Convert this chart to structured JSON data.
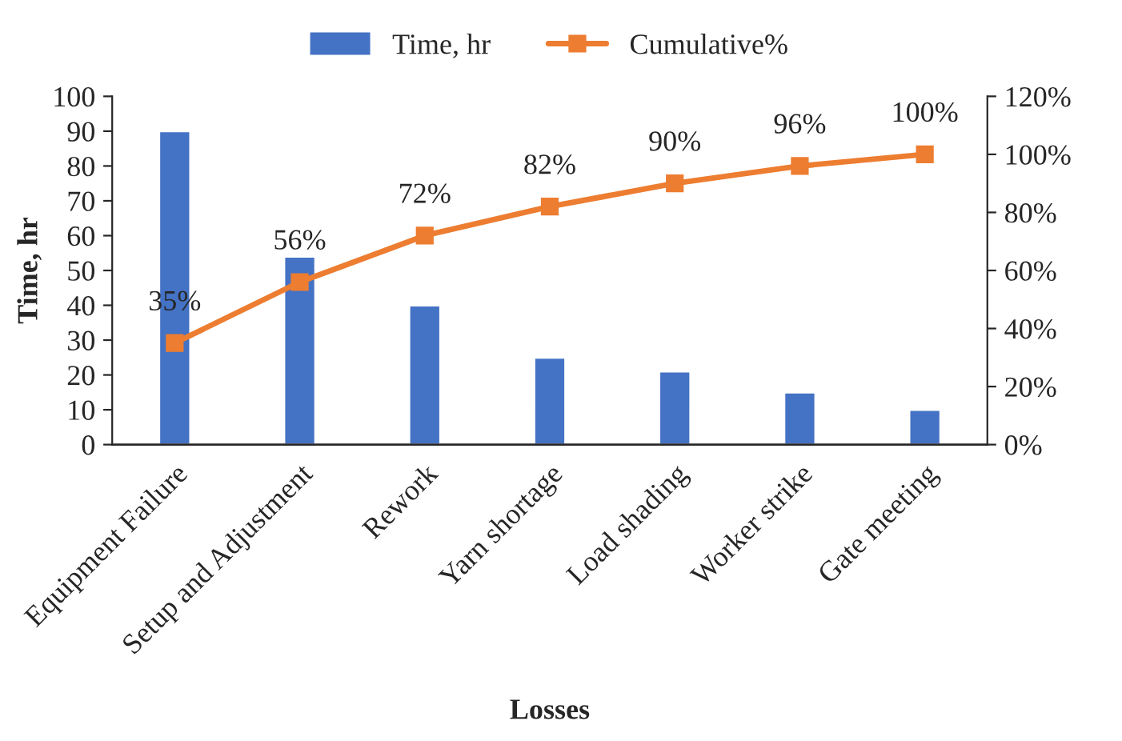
{
  "chart_data": {
    "type": "bar",
    "xlabel": "Losses",
    "ylabel": "Time, hr",
    "categories": [
      "Equipment Failure",
      "Setup and Adjustment",
      "Rework",
      "Yarn shortage",
      "Load shading",
      "Worker strike",
      "Gate meeting"
    ],
    "series": [
      {
        "name": "Time, hr",
        "color": "#4472c4",
        "values": [
          90,
          54,
          40,
          25,
          21,
          15,
          10
        ]
      },
      {
        "name": "Cumulative%",
        "type": "line",
        "axis": "y2",
        "color": "#ed7d31",
        "marker": "square",
        "values": [
          35,
          56,
          72,
          82,
          90,
          96,
          100
        ],
        "value_labels": [
          "35%",
          "56%",
          "72%",
          "82%",
          "90%",
          "96%",
          "100%"
        ]
      }
    ],
    "ylim": [
      0,
      100
    ],
    "yticks": [
      0,
      10,
      20,
      30,
      40,
      50,
      60,
      70,
      80,
      90,
      100
    ],
    "y2lim": [
      0,
      120
    ],
    "y2ticks": [
      {
        "value": 0,
        "label": "0%"
      },
      {
        "value": 20,
        "label": "20%"
      },
      {
        "value": 40,
        "label": "40%"
      },
      {
        "value": 60,
        "label": "60%"
      },
      {
        "value": 80,
        "label": "80%"
      },
      {
        "value": 100,
        "label": "100%"
      },
      {
        "value": 120,
        "label": "120%"
      }
    ],
    "legend": "top",
    "grid": false
  }
}
